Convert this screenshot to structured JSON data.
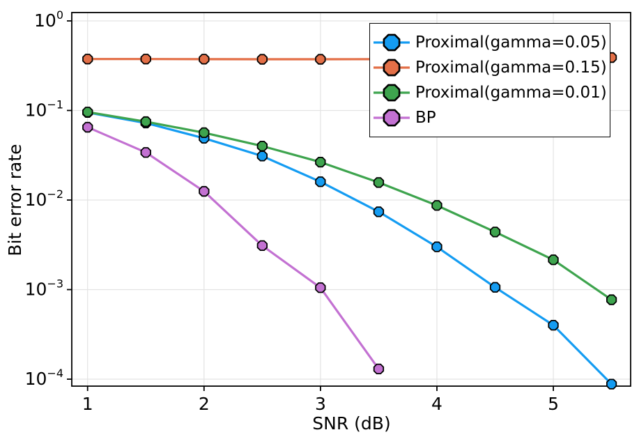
{
  "chart_data": {
    "type": "line",
    "title": "",
    "xlabel": "SNR (dB)",
    "ylabel": "Bit error rate",
    "x_scale": "linear",
    "y_scale": "log10",
    "xlim": [
      0.864,
      5.664
    ],
    "ylim": [
      8.36e-05,
      1.24
    ],
    "x_ticks": [
      1,
      2,
      3,
      4,
      5
    ],
    "y_tick_exponents": [
      0,
      -1,
      -2,
      -3,
      -4
    ],
    "grid": true,
    "legend_position": "top-right",
    "marker": "octagon",
    "x": [
      1,
      1.5,
      2,
      2.5,
      3,
      3.5,
      4,
      4.5,
      5,
      5.5
    ],
    "series": [
      {
        "name": "Proximal(gamma=0.05)",
        "color": "#149CF2",
        "values": [
          0.095,
          0.0725,
          0.049,
          0.031,
          0.016,
          0.0074,
          0.003,
          0.00106,
          0.0004,
          8.8e-05
        ]
      },
      {
        "name": "Proximal(gamma=0.15)",
        "color": "#E36F47",
        "values": [
          0.375,
          0.375,
          0.374,
          0.373,
          0.373,
          0.374,
          0.377,
          0.38,
          0.384,
          0.39
        ]
      },
      {
        "name": "Proximal(gamma=0.01)",
        "color": "#3EA44E",
        "values": [
          0.096,
          0.075,
          0.0565,
          0.04,
          0.0265,
          0.0157,
          0.0087,
          0.0044,
          0.00215,
          0.00077
        ]
      },
      {
        "name": "BP",
        "color": "#C371D2",
        "values": [
          0.065,
          0.034,
          0.0125,
          0.0031,
          0.00105,
          0.00013,
          null,
          null,
          null,
          null
        ]
      }
    ],
    "colors": {
      "grid": "#E3E3E3",
      "frame": "#000000",
      "text": "#000000",
      "background": "#FFFFFF"
    }
  }
}
